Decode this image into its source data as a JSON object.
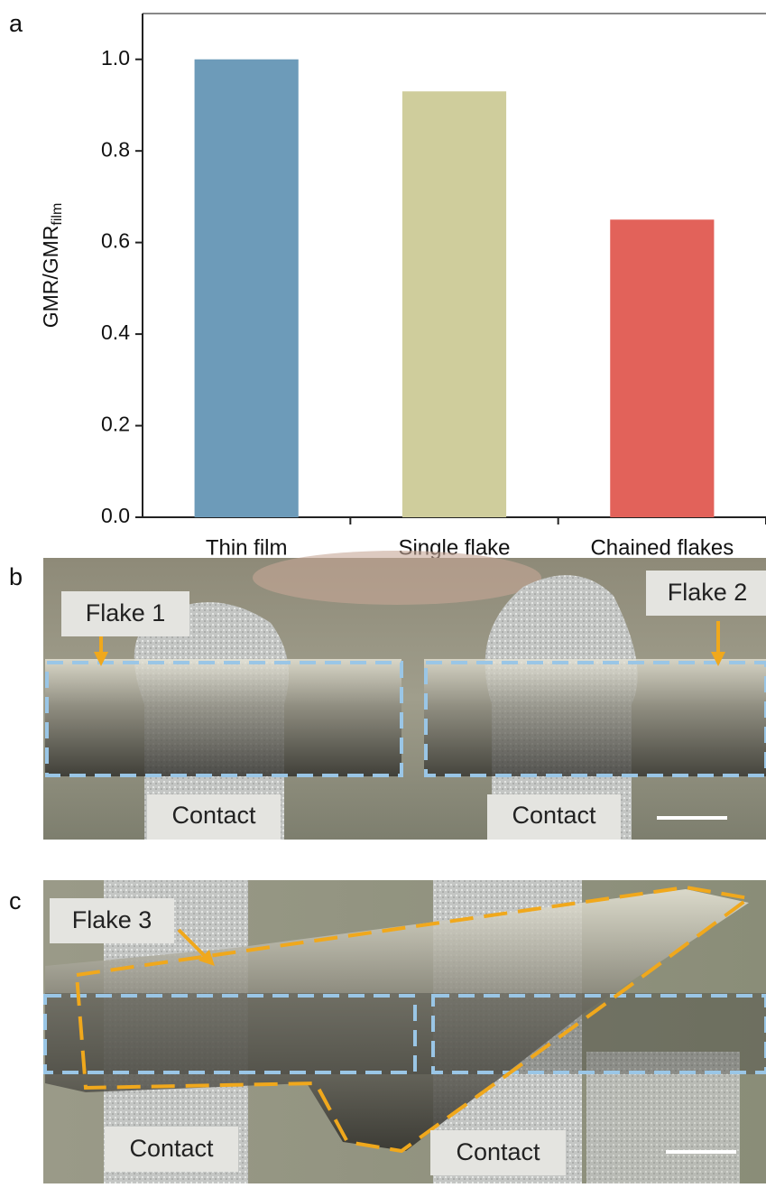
{
  "panel_labels": [
    "a",
    "b",
    "c"
  ],
  "chart_data": {
    "type": "bar",
    "ylabel": "GMR/GMR",
    "ylabel_sub": "film",
    "categories": [
      "Thin film",
      "Single flake",
      "Chained flakes"
    ],
    "values": [
      1.0,
      0.93,
      0.65
    ],
    "colors": [
      "#6d9bb9",
      "#cfcd9c",
      "#e2625a"
    ],
    "ylim": [
      0,
      1.1
    ],
    "yticks": [
      {
        "value": 0,
        "label": "0.0"
      },
      0.2,
      0.4,
      0.6,
      0.8,
      {
        "value": 1,
        "label": "1.0"
      }
    ]
  },
  "micrographs": [
    {
      "labels": [
        "Flake 1",
        "Flake 2",
        "Contact",
        "Contact"
      ]
    },
    {
      "labels": [
        "Flake 3",
        "Contact",
        "Contact"
      ]
    }
  ]
}
